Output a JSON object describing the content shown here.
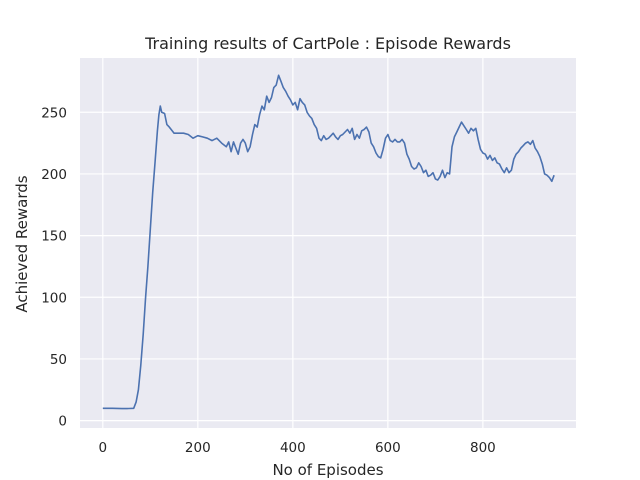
{
  "chart_data": {
    "type": "line",
    "title": "Training results of CartPole : Episode Rewards",
    "xlabel": "No of Episodes",
    "ylabel": "Achieved Rewards",
    "xlim": [
      -48,
      996
    ],
    "ylim": [
      -6,
      294
    ],
    "xticks": [
      0,
      200,
      400,
      600,
      800
    ],
    "yticks": [
      0,
      50,
      100,
      150,
      200,
      250
    ],
    "grid": true,
    "colors": {
      "background": "#eaeaf2",
      "grid": "#ffffff",
      "line": "#4c72b0",
      "text": "#262626"
    },
    "series": [
      {
        "values": [
          [
            0,
            10
          ],
          [
            20,
            10
          ],
          [
            40,
            9.7
          ],
          [
            55,
            9.8
          ],
          [
            65,
            10
          ],
          [
            70,
            15
          ],
          [
            75,
            25
          ],
          [
            80,
            45
          ],
          [
            85,
            70
          ],
          [
            90,
            100
          ],
          [
            95,
            125
          ],
          [
            100,
            155
          ],
          [
            105,
            185
          ],
          [
            110,
            210
          ],
          [
            115,
            235
          ],
          [
            118,
            248
          ],
          [
            121,
            255
          ],
          [
            124,
            250
          ],
          [
            130,
            249
          ],
          [
            135,
            240
          ],
          [
            140,
            238
          ],
          [
            150,
            233
          ],
          [
            160,
            233
          ],
          [
            170,
            233
          ],
          [
            180,
            232
          ],
          [
            190,
            229
          ],
          [
            200,
            231
          ],
          [
            210,
            230
          ],
          [
            220,
            229
          ],
          [
            230,
            227
          ],
          [
            240,
            229
          ],
          [
            250,
            225
          ],
          [
            260,
            222
          ],
          [
            265,
            226
          ],
          [
            270,
            218
          ],
          [
            275,
            226
          ],
          [
            280,
            221
          ],
          [
            285,
            216
          ],
          [
            290,
            225
          ],
          [
            295,
            228
          ],
          [
            300,
            225
          ],
          [
            305,
            218
          ],
          [
            310,
            222
          ],
          [
            315,
            232
          ],
          [
            320,
            240
          ],
          [
            325,
            238
          ],
          [
            330,
            248
          ],
          [
            335,
            255
          ],
          [
            340,
            252
          ],
          [
            345,
            263
          ],
          [
            350,
            258
          ],
          [
            355,
            262
          ],
          [
            360,
            270
          ],
          [
            365,
            272
          ],
          [
            370,
            280
          ],
          [
            375,
            275
          ],
          [
            380,
            270
          ],
          [
            385,
            267
          ],
          [
            390,
            263
          ],
          [
            395,
            260
          ],
          [
            400,
            256
          ],
          [
            405,
            258
          ],
          [
            410,
            252
          ],
          [
            415,
            261
          ],
          [
            420,
            258
          ],
          [
            425,
            256
          ],
          [
            430,
            250
          ],
          [
            435,
            247
          ],
          [
            440,
            245
          ],
          [
            445,
            240
          ],
          [
            450,
            237
          ],
          [
            455,
            229
          ],
          [
            460,
            227
          ],
          [
            465,
            231
          ],
          [
            470,
            228
          ],
          [
            475,
            229
          ],
          [
            480,
            231
          ],
          [
            485,
            233
          ],
          [
            490,
            230
          ],
          [
            495,
            228
          ],
          [
            500,
            231
          ],
          [
            505,
            232
          ],
          [
            510,
            234
          ],
          [
            515,
            236
          ],
          [
            520,
            233
          ],
          [
            525,
            237
          ],
          [
            530,
            228
          ],
          [
            535,
            232
          ],
          [
            540,
            229
          ],
          [
            545,
            235
          ],
          [
            550,
            236
          ],
          [
            555,
            238
          ],
          [
            560,
            234
          ],
          [
            565,
            225
          ],
          [
            570,
            222
          ],
          [
            575,
            217
          ],
          [
            580,
            214
          ],
          [
            585,
            213
          ],
          [
            590,
            220
          ],
          [
            595,
            229
          ],
          [
            600,
            232
          ],
          [
            605,
            227
          ],
          [
            610,
            226
          ],
          [
            615,
            228
          ],
          [
            620,
            226
          ],
          [
            625,
            226
          ],
          [
            630,
            228
          ],
          [
            635,
            225
          ],
          [
            640,
            216
          ],
          [
            645,
            212
          ],
          [
            650,
            206
          ],
          [
            655,
            204
          ],
          [
            660,
            205
          ],
          [
            665,
            209
          ],
          [
            670,
            206
          ],
          [
            675,
            201
          ],
          [
            680,
            203
          ],
          [
            685,
            198
          ],
          [
            690,
            199
          ],
          [
            695,
            201
          ],
          [
            700,
            196
          ],
          [
            705,
            195
          ],
          [
            710,
            198
          ],
          [
            715,
            203
          ],
          [
            720,
            197
          ],
          [
            725,
            201
          ],
          [
            730,
            200
          ],
          [
            735,
            222
          ],
          [
            740,
            230
          ],
          [
            745,
            234
          ],
          [
            750,
            238
          ],
          [
            755,
            242
          ],
          [
            760,
            239
          ],
          [
            765,
            236
          ],
          [
            770,
            233
          ],
          [
            775,
            237
          ],
          [
            780,
            235
          ],
          [
            785,
            237
          ],
          [
            790,
            228
          ],
          [
            795,
            220
          ],
          [
            800,
            217
          ],
          [
            805,
            216
          ],
          [
            810,
            212
          ],
          [
            815,
            215
          ],
          [
            820,
            211
          ],
          [
            825,
            213
          ],
          [
            830,
            209
          ],
          [
            835,
            208
          ],
          [
            840,
            204
          ],
          [
            845,
            201
          ],
          [
            850,
            205
          ],
          [
            855,
            201
          ],
          [
            860,
            203
          ],
          [
            865,
            212
          ],
          [
            870,
            216
          ],
          [
            875,
            218
          ],
          [
            880,
            221
          ],
          [
            885,
            223
          ],
          [
            890,
            225
          ],
          [
            895,
            226
          ],
          [
            900,
            224
          ],
          [
            905,
            227
          ],
          [
            910,
            221
          ],
          [
            915,
            218
          ],
          [
            920,
            214
          ],
          [
            925,
            208
          ],
          [
            930,
            200
          ],
          [
            935,
            199
          ],
          [
            940,
            197
          ],
          [
            945,
            194
          ],
          [
            950,
            199
          ]
        ]
      }
    ]
  }
}
